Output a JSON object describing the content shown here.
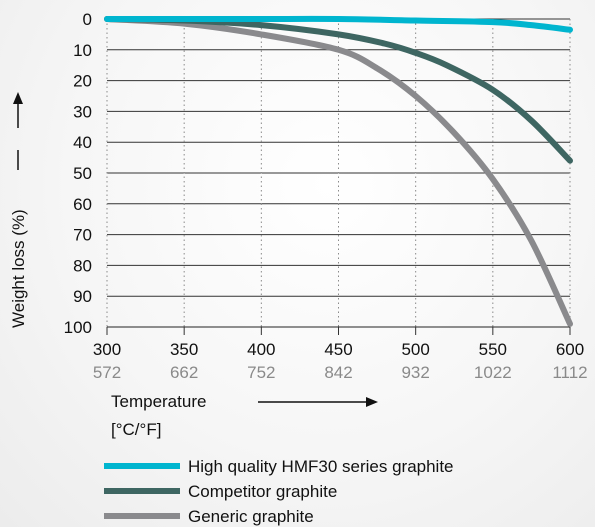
{
  "chart_data": {
    "type": "line",
    "ylabel": "Weight loss (%)",
    "xlabel": "Temperature",
    "xlabel_unit": "[°C/°F]",
    "x_ticks_c": [
      "300",
      "350",
      "400",
      "450",
      "500",
      "550",
      "600"
    ],
    "x_ticks_f": [
      "572",
      "662",
      "752",
      "842",
      "932",
      "1022",
      "1112"
    ],
    "y_ticks": [
      "0",
      "10",
      "20",
      "30",
      "40",
      "50",
      "60",
      "70",
      "80",
      "90",
      "100"
    ],
    "xlim": [
      300,
      600
    ],
    "ylim": [
      0,
      100
    ],
    "y_inverted": true,
    "grid": {
      "horizontal": "solid",
      "vertical": "dotted"
    },
    "legend_position": "bottom",
    "series": [
      {
        "name": "High quality HMF30 series graphite",
        "color": "#00b5cf",
        "points": [
          [
            300,
            0
          ],
          [
            350,
            0
          ],
          [
            400,
            0
          ],
          [
            450,
            0
          ],
          [
            500,
            0.5
          ],
          [
            550,
            1
          ],
          [
            575,
            2
          ],
          [
            600,
            3.5
          ]
        ]
      },
      {
        "name": "Competitor graphite",
        "color": "#3e6662",
        "points": [
          [
            300,
            0
          ],
          [
            350,
            0.5
          ],
          [
            400,
            2
          ],
          [
            450,
            5
          ],
          [
            480,
            8
          ],
          [
            500,
            11
          ],
          [
            520,
            15
          ],
          [
            550,
            23
          ],
          [
            575,
            33
          ],
          [
            600,
            46
          ]
        ]
      },
      {
        "name": "Generic graphite",
        "color": "#8a8a8d",
        "points": [
          [
            300,
            0
          ],
          [
            350,
            1.5
          ],
          [
            400,
            5
          ],
          [
            450,
            10
          ],
          [
            475,
            16
          ],
          [
            500,
            25
          ],
          [
            525,
            37
          ],
          [
            550,
            52
          ],
          [
            575,
            72
          ],
          [
            600,
            99
          ]
        ]
      }
    ]
  }
}
